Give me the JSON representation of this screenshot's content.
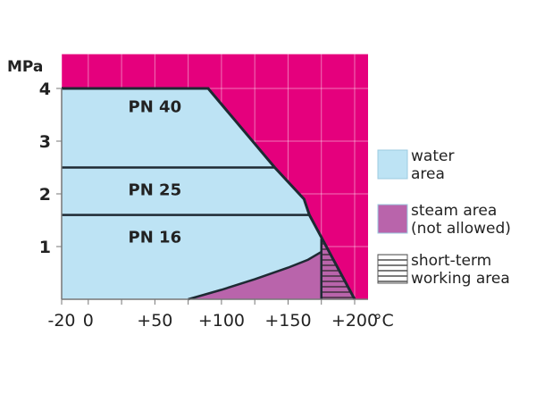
{
  "chart_data": {
    "type": "area",
    "title": "",
    "xlabel": "°C",
    "ylabel": "MPa",
    "xlim": [
      -20,
      210
    ],
    "ylim": [
      0,
      4.65
    ],
    "x_ticks": [
      -20,
      0,
      25,
      50,
      75,
      100,
      125,
      150,
      175,
      200
    ],
    "x_tick_labels": [
      {
        "v": -20,
        "t": "-20"
      },
      {
        "v": 0,
        "t": "0"
      },
      {
        "v": 50,
        "t": "+50"
      },
      {
        "v": 100,
        "t": "+100"
      },
      {
        "v": 150,
        "t": "+150"
      },
      {
        "v": 200,
        "t": "+200"
      }
    ],
    "y_tick_labels": [
      {
        "v": 1,
        "t": "1"
      },
      {
        "v": 2,
        "t": "2"
      },
      {
        "v": 3,
        "t": "3"
      },
      {
        "v": 4,
        "t": "4"
      }
    ],
    "grid": true,
    "limit_boundary": [
      [
        -20,
        4
      ],
      [
        90,
        4
      ],
      [
        140,
        2.5
      ],
      [
        162,
        1.9
      ],
      [
        166,
        1.6
      ],
      [
        200,
        0
      ]
    ],
    "series": [
      {
        "name": "PN 40",
        "pressure": 4.0,
        "x_range": [
          -20,
          90
        ]
      },
      {
        "name": "PN 25",
        "pressure": 2.5,
        "x_range": [
          -20,
          140
        ]
      },
      {
        "name": "PN 16",
        "pressure": 1.6,
        "x_range": [
          -20,
          166
        ]
      }
    ],
    "steam_curve": [
      [
        75,
        0
      ],
      [
        100,
        0.18
      ],
      [
        125,
        0.38
      ],
      [
        150,
        0.6
      ],
      [
        165,
        0.75
      ],
      [
        175,
        0.9
      ]
    ],
    "short_term_range": [
      175,
      200
    ],
    "short_term_top": 1.15,
    "legend": [
      {
        "label_lines": [
          "water",
          "area"
        ],
        "color": "#bde3f4",
        "pattern": "solid"
      },
      {
        "label_lines": [
          "steam area",
          "(not allowed)"
        ],
        "color": "#b964ab",
        "pattern": "solid"
      },
      {
        "label_lines": [
          "short-term",
          "working area"
        ],
        "color": "#ffffff",
        "pattern": "hatched"
      }
    ],
    "legend_position": "right",
    "colors": {
      "background_region": "#e5007d",
      "water": "#bde3f4",
      "steam": "#b964ab",
      "line": "#1e2a33"
    }
  }
}
